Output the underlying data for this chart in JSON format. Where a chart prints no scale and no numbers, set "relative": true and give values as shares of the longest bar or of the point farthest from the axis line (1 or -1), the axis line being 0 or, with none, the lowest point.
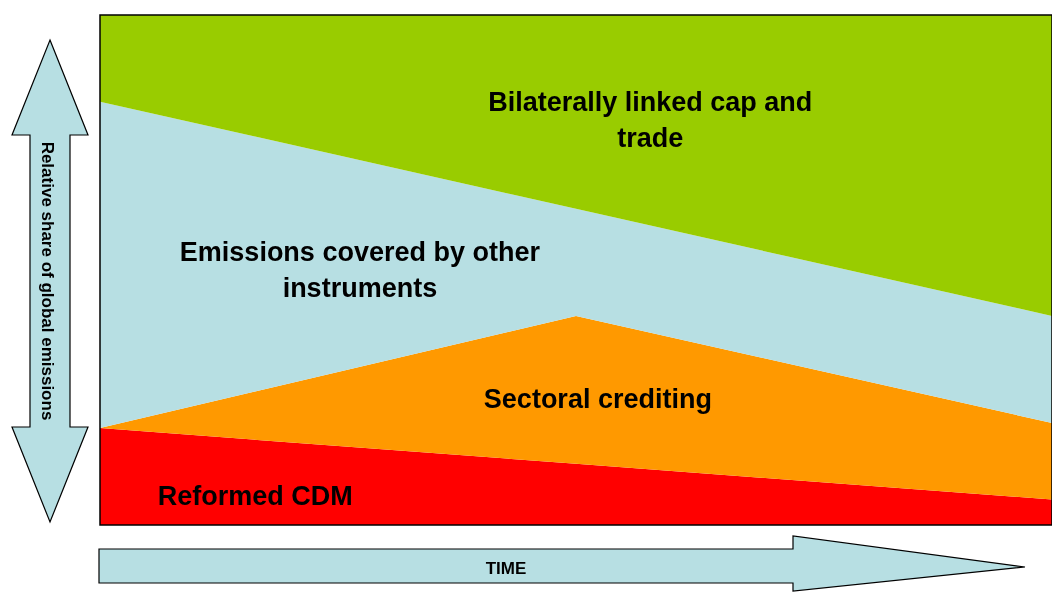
{
  "chart_data": {
    "type": "area",
    "stacked": true,
    "relative": true,
    "xlabel": "TIME",
    "ylabel": "Relative share of global emissions",
    "categories": [
      null,
      null,
      null
    ],
    "series": [
      {
        "name": "Reformed CDM",
        "color": "#ff0000",
        "values": [
          0.19,
          0.12,
          0.05
        ]
      },
      {
        "name": "Sectoral crediting",
        "color": "#ff9900",
        "values": [
          0,
          0.29,
          0.15
        ]
      },
      {
        "name": "Emissions covered by other instruments",
        "color": "#b7dfe3",
        "values": [
          0.64,
          0.21,
          0.21
        ]
      },
      {
        "name": "Bilaterally linked cap and trade",
        "color": "#99cc00",
        "values": [
          0.17,
          0.38,
          0.59
        ]
      }
    ]
  }
}
